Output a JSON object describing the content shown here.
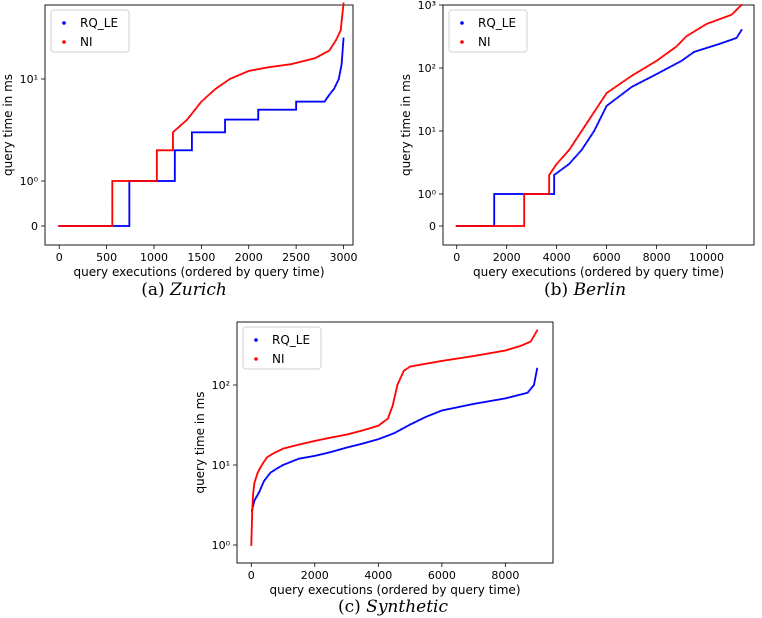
{
  "figure": {
    "captions": [
      {
        "label": "(a)",
        "name": "Zurich"
      },
      {
        "label": "(b)",
        "name": "Berlin"
      },
      {
        "label": "(c)",
        "name": "Synthetic"
      }
    ]
  },
  "chart_data": [
    {
      "id": "zurich",
      "type": "scatter",
      "title": "",
      "xlabel": "query executions (ordered by query time)",
      "ylabel": "query time in ms",
      "xlim": [
        -150,
        3100
      ],
      "xticks": [
        0,
        500,
        1000,
        1500,
        2000,
        2500,
        3000
      ],
      "yscale": "symlog",
      "yticks": [
        {
          "value": 0,
          "label": "0"
        },
        {
          "value": 1,
          "label": "10⁰"
        },
        {
          "value": 10,
          "label": "10¹"
        }
      ],
      "legend": {
        "position": "top-left",
        "entries": [
          "RQ_LE",
          "NI"
        ]
      },
      "series": [
        {
          "name": "RQ_LE",
          "color": "#0000ff",
          "x": [
            0,
            740,
            740,
            1220,
            1220,
            1400,
            1400,
            1750,
            1750,
            2100,
            2100,
            2500,
            2500,
            2800,
            2850,
            2900,
            2950,
            2980,
            3000
          ],
          "y": [
            0,
            0,
            1,
            1,
            2,
            2,
            3,
            3,
            4,
            4,
            5,
            5,
            6,
            6,
            7,
            8,
            10,
            14,
            25
          ]
        },
        {
          "name": "NI",
          "color": "#ff0000",
          "x": [
            0,
            560,
            560,
            1030,
            1030,
            1200,
            1200,
            1350,
            1500,
            1650,
            1800,
            2000,
            2200,
            2450,
            2700,
            2850,
            2920,
            2970,
            3000
          ],
          "y": [
            0,
            0,
            1,
            1,
            2,
            2,
            3,
            4,
            6,
            8,
            10,
            12,
            13,
            14,
            16,
            19,
            24,
            30,
            55
          ]
        }
      ]
    },
    {
      "id": "berlin",
      "type": "scatter",
      "title": "",
      "xlabel": "query executions (ordered by query time)",
      "ylabel": "query time in ms",
      "xlim": [
        -550,
        11900
      ],
      "xticks": [
        0,
        2000,
        4000,
        6000,
        8000,
        10000
      ],
      "yscale": "symlog",
      "yticks": [
        {
          "value": 0,
          "label": "0"
        },
        {
          "value": 1,
          "label": "10⁰"
        },
        {
          "value": 10,
          "label": "10¹"
        },
        {
          "value": 100,
          "label": "10²"
        },
        {
          "value": 1000,
          "label": "10³"
        }
      ],
      "legend": {
        "position": "top-left",
        "entries": [
          "RQ_LE",
          "NI"
        ]
      },
      "series": [
        {
          "name": "RQ_LE",
          "color": "#0000ff",
          "x": [
            0,
            1500,
            1500,
            3900,
            3900,
            4500,
            5000,
            5500,
            6000,
            7000,
            8000,
            9000,
            9500,
            10500,
            11200,
            11400
          ],
          "y": [
            0,
            0,
            1,
            1,
            2,
            3,
            5,
            10,
            25,
            50,
            80,
            130,
            180,
            240,
            300,
            400
          ]
        },
        {
          "name": "NI",
          "color": "#ff0000",
          "x": [
            0,
            2700,
            2700,
            3700,
            3700,
            4000,
            4500,
            5000,
            5500,
            6000,
            7000,
            8000,
            8800,
            9200,
            10000,
            11000,
            11400
          ],
          "y": [
            0,
            0,
            1,
            1,
            2,
            3,
            5,
            10,
            20,
            40,
            75,
            130,
            220,
            320,
            500,
            700,
            1000
          ]
        }
      ]
    },
    {
      "id": "synthetic",
      "type": "scatter",
      "title": "",
      "xlabel": "query executions (ordered by query time)",
      "ylabel": "query time in ms",
      "xlim": [
        -450,
        9500
      ],
      "xticks": [
        0,
        2000,
        4000,
        6000,
        8000
      ],
      "yscale": "log",
      "yticks": [
        {
          "value": 1,
          "label": "10⁰"
        },
        {
          "value": 10,
          "label": "10¹"
        },
        {
          "value": 100,
          "label": "10²"
        }
      ],
      "legend": {
        "position": "top-left",
        "entries": [
          "RQ_LE",
          "NI"
        ]
      },
      "series": [
        {
          "name": "RQ_LE",
          "color": "#0000ff",
          "x": [
            20,
            100,
            250,
            400,
            600,
            800,
            1000,
            1500,
            2000,
            2500,
            3000,
            3500,
            4000,
            4500,
            5000,
            5500,
            6000,
            7000,
            8000,
            8700,
            8900,
            9000
          ],
          "y": [
            2.7,
            3.6,
            4.6,
            6.3,
            8,
            9,
            10,
            12,
            13,
            14.5,
            16.5,
            18.5,
            21,
            25,
            32,
            40,
            48,
            58,
            68,
            80,
            100,
            160
          ]
        },
        {
          "name": "NI",
          "color": "#ff0000",
          "x": [
            0,
            30,
            60,
            100,
            200,
            300,
            400,
            500,
            700,
            1000,
            1500,
            2000,
            2500,
            3000,
            3500,
            4000,
            4300,
            4450,
            4600,
            4800,
            5000,
            6000,
            7000,
            8000,
            8500,
            8800,
            9000
          ],
          "y": [
            1,
            2.7,
            4.5,
            6,
            8,
            9.5,
            11,
            12.5,
            14,
            16,
            18,
            20,
            22,
            24,
            27,
            31,
            38,
            55,
            100,
            150,
            170,
            200,
            230,
            270,
            310,
            350,
            480
          ]
        }
      ]
    }
  ]
}
